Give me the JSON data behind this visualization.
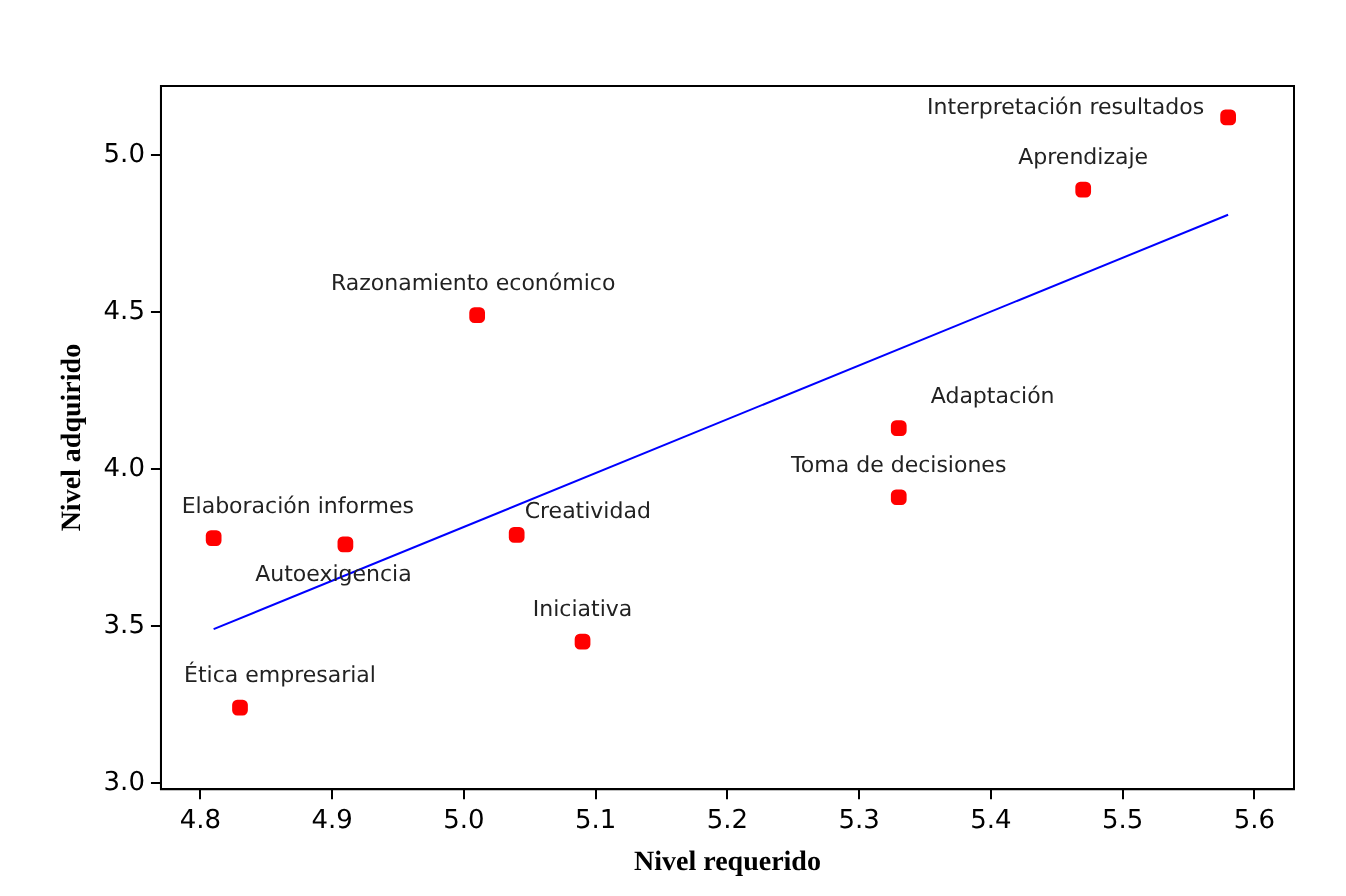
{
  "chart_data": {
    "type": "scatter",
    "xlabel": "Nivel requerido",
    "ylabel": "Nivel adquirido",
    "xlim": [
      4.77,
      5.63
    ],
    "xticks": [
      4.8,
      4.9,
      {
        "value": 5,
        "label": "5.0"
      },
      5.1,
      5.2,
      5.3,
      5.4,
      5.5,
      5.6
    ],
    "ylim": [
      2.98,
      5.22
    ],
    "yticks": [
      {
        "value": 3,
        "label": "3.0"
      },
      3.5,
      {
        "value": 4,
        "label": "4.0"
      },
      4.5,
      {
        "value": 5,
        "label": "5.0"
      }
    ],
    "grid": false,
    "legend": false,
    "marker": "square",
    "series": [
      {
        "type": "scatter",
        "color": "#ff0000",
        "x": [
          5.58,
          5.47,
          5.01,
          5.33,
          5.33,
          4.81,
          4.91,
          5.04,
          5.09,
          4.83
        ],
        "values": [
          5.12,
          4.89,
          4.49,
          4.13,
          3.91,
          3.78,
          3.76,
          3.79,
          3.45,
          3.24
        ]
      },
      {
        "type": "line",
        "color": "#0000ff",
        "x": [
          4.81,
          5.58
        ],
        "values": [
          3.49,
          4.81
        ],
        "marker": "none",
        "line_style": "solid"
      }
    ],
    "annotations": [
      {
        "text": "Interpretación resultados",
        "x": 5.58,
        "y": 5.12
      },
      {
        "text": "Aprendizaje",
        "x": 5.47,
        "y": 4.89
      },
      {
        "text": "Razonamiento económico",
        "x": 5.01,
        "y": 4.49
      },
      {
        "text": "Adaptación",
        "x": 5.33,
        "y": 4.13
      },
      {
        "text": "Toma de decisiones",
        "x": 5.33,
        "y": 3.91
      },
      {
        "text": "Elaboración informes",
        "x": 4.81,
        "y": 3.78
      },
      {
        "text": "Autoexigencia",
        "x": 4.91,
        "y": 3.76
      },
      {
        "text": "Creatividad",
        "x": 5.04,
        "y": 3.79
      },
      {
        "text": "Iniciativa",
        "x": 5.09,
        "y": 3.45
      },
      {
        "text": "Ética empresarial",
        "x": 4.83,
        "y": 3.24
      }
    ]
  }
}
